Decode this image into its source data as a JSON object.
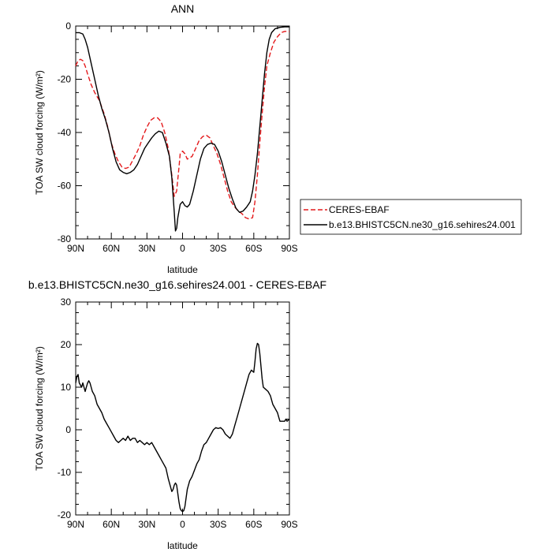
{
  "chart_data": [
    {
      "type": "line",
      "title": "ANN",
      "xlabel": "latitude",
      "ylabel": "TOA SW cloud forcing (W/m²)",
      "xlim": [
        -90,
        90
      ],
      "ylim": [
        -80,
        0
      ],
      "x_ticks": [
        -90,
        -60,
        -30,
        0,
        30,
        60,
        90
      ],
      "x_tick_labels": [
        "90N",
        "60N",
        "30N",
        "0",
        "30S",
        "60S",
        "90S"
      ],
      "y_ticks": [
        -80,
        -60,
        -40,
        -20,
        0
      ],
      "y_tick_labels": [
        "-80",
        "-60",
        "-40",
        "-20",
        "0"
      ],
      "grid": false,
      "legend_position": "right",
      "series": [
        {
          "name": "CERES-EBAF",
          "color": "#e41a1c",
          "dash": "dashed",
          "points": [
            [
              -90,
              -15
            ],
            [
              -88,
              -13
            ],
            [
              -86,
              -12.5
            ],
            [
              -84,
              -13
            ],
            [
              -82,
              -15
            ],
            [
              -80,
              -18
            ],
            [
              -77,
              -22
            ],
            [
              -74,
              -25
            ],
            [
              -70,
              -28
            ],
            [
              -66,
              -33
            ],
            [
              -63,
              -38
            ],
            [
              -60,
              -44
            ],
            [
              -57,
              -48
            ],
            [
              -54,
              -51
            ],
            [
              -51,
              -53
            ],
            [
              -48,
              -53.5
            ],
            [
              -45,
              -53
            ],
            [
              -42,
              -50.5
            ],
            [
              -39,
              -48
            ],
            [
              -36,
              -45
            ],
            [
              -33,
              -41
            ],
            [
              -30,
              -38
            ],
            [
              -27,
              -35.5
            ],
            [
              -24,
              -34.5
            ],
            [
              -21,
              -34.5
            ],
            [
              -18,
              -36
            ],
            [
              -15,
              -40
            ],
            [
              -12,
              -46
            ],
            [
              -9,
              -56
            ],
            [
              -7,
              -64
            ],
            [
              -5,
              -62
            ],
            [
              -3,
              -53
            ],
            [
              -2,
              -48
            ],
            [
              0,
              -47
            ],
            [
              2,
              -48
            ],
            [
              4,
              -50
            ],
            [
              6,
              -49.5
            ],
            [
              8,
              -49
            ],
            [
              11,
              -46
            ],
            [
              14,
              -43
            ],
            [
              17,
              -41.5
            ],
            [
              20,
              -41
            ],
            [
              23,
              -42
            ],
            [
              26,
              -45
            ],
            [
              29,
              -48
            ],
            [
              32,
              -52
            ],
            [
              35,
              -57
            ],
            [
              38,
              -62
            ],
            [
              41,
              -66
            ],
            [
              44,
              -68
            ],
            [
              47,
              -69.5
            ],
            [
              50,
              -70.5
            ],
            [
              53,
              -72
            ],
            [
              56,
              -72.5
            ],
            [
              59,
              -72
            ],
            [
              61,
              -66
            ],
            [
              63,
              -56
            ],
            [
              65,
              -44
            ],
            [
              67,
              -33
            ],
            [
              69,
              -23
            ],
            [
              71,
              -15
            ],
            [
              74,
              -10
            ],
            [
              77,
              -6
            ],
            [
              80,
              -4
            ],
            [
              83,
              -2.5
            ],
            [
              86,
              -2
            ],
            [
              90,
              -2
            ]
          ]
        },
        {
          "name": "b.e13.BHISTC5CN.ne30_g16.sehires24.001",
          "color": "#000000",
          "dash": "solid",
          "points": [
            [
              -90,
              -2.5
            ],
            [
              -87,
              -2.5
            ],
            [
              -84,
              -3
            ],
            [
              -82,
              -5
            ],
            [
              -80,
              -8
            ],
            [
              -77,
              -14
            ],
            [
              -74,
              -20
            ],
            [
              -71,
              -26
            ],
            [
              -68,
              -31
            ],
            [
              -65,
              -35
            ],
            [
              -62,
              -40
            ],
            [
              -59,
              -46
            ],
            [
              -56,
              -51
            ],
            [
              -53,
              -54
            ],
            [
              -50,
              -55
            ],
            [
              -47,
              -55.5
            ],
            [
              -44,
              -55
            ],
            [
              -41,
              -54
            ],
            [
              -38,
              -52
            ],
            [
              -35,
              -49
            ],
            [
              -32,
              -46
            ],
            [
              -29,
              -44
            ],
            [
              -26,
              -42
            ],
            [
              -23,
              -40.5
            ],
            [
              -20,
              -39.5
            ],
            [
              -17,
              -40
            ],
            [
              -14,
              -44
            ],
            [
              -11,
              -49
            ],
            [
              -9,
              -57
            ],
            [
              -7,
              -70
            ],
            [
              -6,
              -77
            ],
            [
              -5,
              -76
            ],
            [
              -4,
              -72
            ],
            [
              -2,
              -67
            ],
            [
              0,
              -66
            ],
            [
              2,
              -67.5
            ],
            [
              4,
              -68
            ],
            [
              6,
              -67
            ],
            [
              9,
              -62
            ],
            [
              12,
              -56
            ],
            [
              15,
              -50
            ],
            [
              18,
              -46
            ],
            [
              21,
              -44.5
            ],
            [
              24,
              -44
            ],
            [
              27,
              -44.5
            ],
            [
              30,
              -47
            ],
            [
              33,
              -51
            ],
            [
              36,
              -56
            ],
            [
              39,
              -61
            ],
            [
              42,
              -65
            ],
            [
              45,
              -68.5
            ],
            [
              48,
              -70
            ],
            [
              51,
              -69.5
            ],
            [
              54,
              -68
            ],
            [
              57,
              -66
            ],
            [
              59,
              -62
            ],
            [
              61,
              -56
            ],
            [
              63,
              -48
            ],
            [
              65,
              -38
            ],
            [
              67,
              -28
            ],
            [
              69,
              -18
            ],
            [
              71,
              -10
            ],
            [
              73,
              -5
            ],
            [
              75,
              -2.5
            ],
            [
              78,
              -1
            ],
            [
              82,
              -0.5
            ],
            [
              86,
              -0.3
            ],
            [
              90,
              -0.3
            ]
          ]
        }
      ]
    },
    {
      "type": "line",
      "title": "b.e13.BHISTC5CN.ne30_g16.sehires24.001 - CERES-EBAF",
      "xlabel": "latitude",
      "ylabel": "TOA SW cloud forcing (W/m²)",
      "xlim": [
        -90,
        90
      ],
      "ylim": [
        -20,
        30
      ],
      "x_ticks": [
        -90,
        -60,
        -30,
        0,
        30,
        60,
        90
      ],
      "x_tick_labels": [
        "90N",
        "60N",
        "30N",
        "0",
        "30S",
        "60S",
        "90S"
      ],
      "y_ticks": [
        -20,
        -10,
        0,
        10,
        20,
        30
      ],
      "y_tick_labels": [
        "-20",
        "-10",
        "0",
        "10",
        "20",
        "30"
      ],
      "grid": false,
      "series": [
        {
          "color": "#000000",
          "dash": "solid",
          "points": [
            [
              -90,
              11
            ],
            [
              -89,
              12.5
            ],
            [
              -88,
              13
            ],
            [
              -87,
              11
            ],
            [
              -86,
              10.5
            ],
            [
              -85,
              10
            ],
            [
              -84,
              11
            ],
            [
              -83,
              10
            ],
            [
              -82,
              9
            ],
            [
              -81,
              10
            ],
            [
              -80,
              11
            ],
            [
              -79,
              11.5
            ],
            [
              -78,
              11
            ],
            [
              -77,
              10
            ],
            [
              -76,
              9
            ],
            [
              -74,
              8
            ],
            [
              -72,
              6
            ],
            [
              -70,
              5
            ],
            [
              -68,
              4
            ],
            [
              -66,
              2.5
            ],
            [
              -64,
              1.5
            ],
            [
              -62,
              0.5
            ],
            [
              -60,
              -0.5
            ],
            [
              -58,
              -1.5
            ],
            [
              -56,
              -2.5
            ],
            [
              -54,
              -3
            ],
            [
              -52,
              -2.5
            ],
            [
              -50,
              -2
            ],
            [
              -48,
              -2.5
            ],
            [
              -46,
              -1.5
            ],
            [
              -44,
              -2.5
            ],
            [
              -42,
              -2
            ],
            [
              -40,
              -2
            ],
            [
              -38,
              -3
            ],
            [
              -36,
              -2.5
            ],
            [
              -34,
              -3
            ],
            [
              -32,
              -3.5
            ],
            [
              -30,
              -3
            ],
            [
              -28,
              -3.5
            ],
            [
              -26,
              -3
            ],
            [
              -24,
              -4
            ],
            [
              -22,
              -5
            ],
            [
              -20,
              -6
            ],
            [
              -18,
              -7
            ],
            [
              -16,
              -8
            ],
            [
              -14,
              -9
            ],
            [
              -12,
              -11.5
            ],
            [
              -10,
              -13.5
            ],
            [
              -9,
              -14.5
            ],
            [
              -8,
              -14
            ],
            [
              -7,
              -13
            ],
            [
              -6,
              -12.5
            ],
            [
              -5,
              -13
            ],
            [
              -4,
              -15
            ],
            [
              -3,
              -17
            ],
            [
              -2,
              -18.5
            ],
            [
              -1,
              -19
            ],
            [
              0,
              -19.2
            ],
            [
              1,
              -19
            ],
            [
              2,
              -18
            ],
            [
              3,
              -16
            ],
            [
              4,
              -14
            ],
            [
              5,
              -13
            ],
            [
              6,
              -12
            ],
            [
              8,
              -11
            ],
            [
              10,
              -9.5
            ],
            [
              12,
              -8
            ],
            [
              14,
              -7
            ],
            [
              16,
              -5
            ],
            [
              18,
              -3.5
            ],
            [
              20,
              -3
            ],
            [
              22,
              -2
            ],
            [
              24,
              -1
            ],
            [
              26,
              0
            ],
            [
              28,
              0.5
            ],
            [
              30,
              0.3
            ],
            [
              32,
              0.5
            ],
            [
              34,
              0
            ],
            [
              36,
              -1
            ],
            [
              38,
              -1.5
            ],
            [
              40,
              -2
            ],
            [
              42,
              -1
            ],
            [
              44,
              1
            ],
            [
              46,
              3
            ],
            [
              48,
              5
            ],
            [
              50,
              7
            ],
            [
              52,
              9
            ],
            [
              54,
              11
            ],
            [
              56,
              13
            ],
            [
              58,
              14
            ],
            [
              60,
              13.5
            ],
            [
              61,
              16
            ],
            [
              62,
              19
            ],
            [
              63,
              20.3
            ],
            [
              64,
              20
            ],
            [
              65,
              18
            ],
            [
              66,
              15
            ],
            [
              67,
              12
            ],
            [
              68,
              10
            ],
            [
              70,
              9.5
            ],
            [
              72,
              9
            ],
            [
              74,
              8
            ],
            [
              76,
              6
            ],
            [
              78,
              5
            ],
            [
              80,
              4
            ],
            [
              81,
              3
            ],
            [
              82,
              2
            ],
            [
              84,
              2
            ],
            [
              86,
              2
            ],
            [
              87,
              2.5
            ],
            [
              88,
              2
            ],
            [
              90,
              2.5
            ]
          ]
        }
      ]
    }
  ]
}
